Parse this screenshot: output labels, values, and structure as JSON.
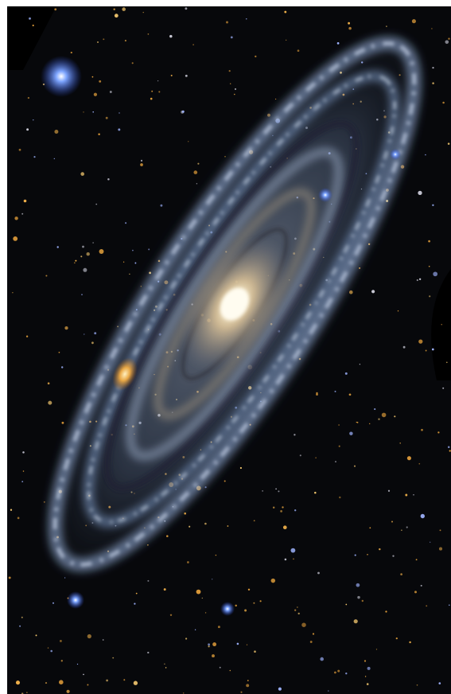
{
  "image": {
    "subject": "spiral-galaxy",
    "colors": {
      "space": "#07080b",
      "arm_blue": "#8fb2e6",
      "arm_pale": "#dfe9f8",
      "core": "#fff6dc",
      "core_glow": "#d8b888",
      "star_gold": "#f0b04a",
      "star_blue": "#4d7dff",
      "satellite_galaxy": "#e6a440",
      "border": "#ffffff"
    }
  }
}
